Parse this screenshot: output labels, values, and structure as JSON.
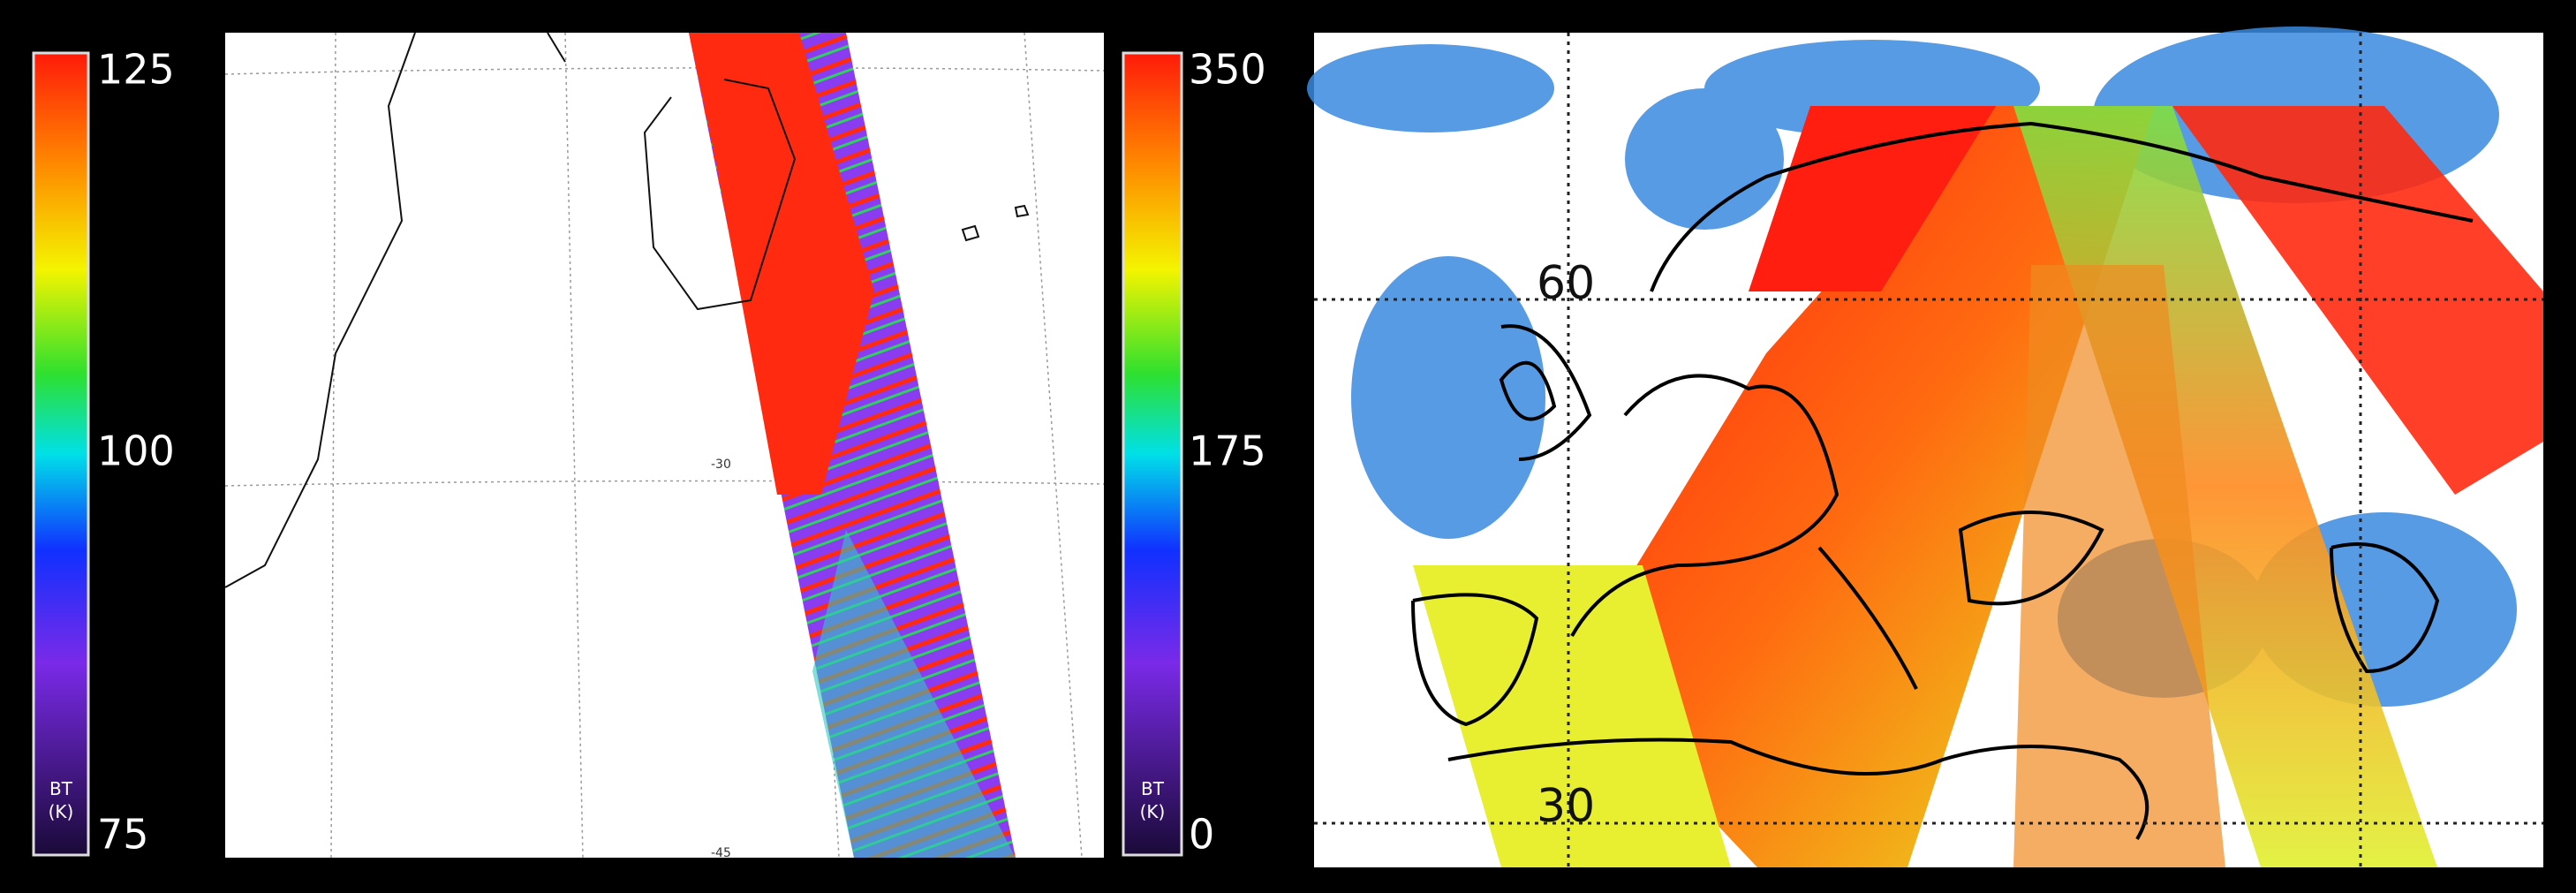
{
  "left_panel": {
    "colorbar": {
      "ticks": [
        125,
        100,
        75
      ],
      "unit": [
        "BT",
        "(K)"
      ]
    },
    "grid_labels": [
      "-30",
      "-45"
    ]
  },
  "right_panel": {
    "colorbar": {
      "ticks": [
        350,
        175,
        0
      ],
      "unit": [
        "BT",
        "(K)"
      ]
    },
    "grid_labels": [
      "60",
      "30"
    ]
  }
}
